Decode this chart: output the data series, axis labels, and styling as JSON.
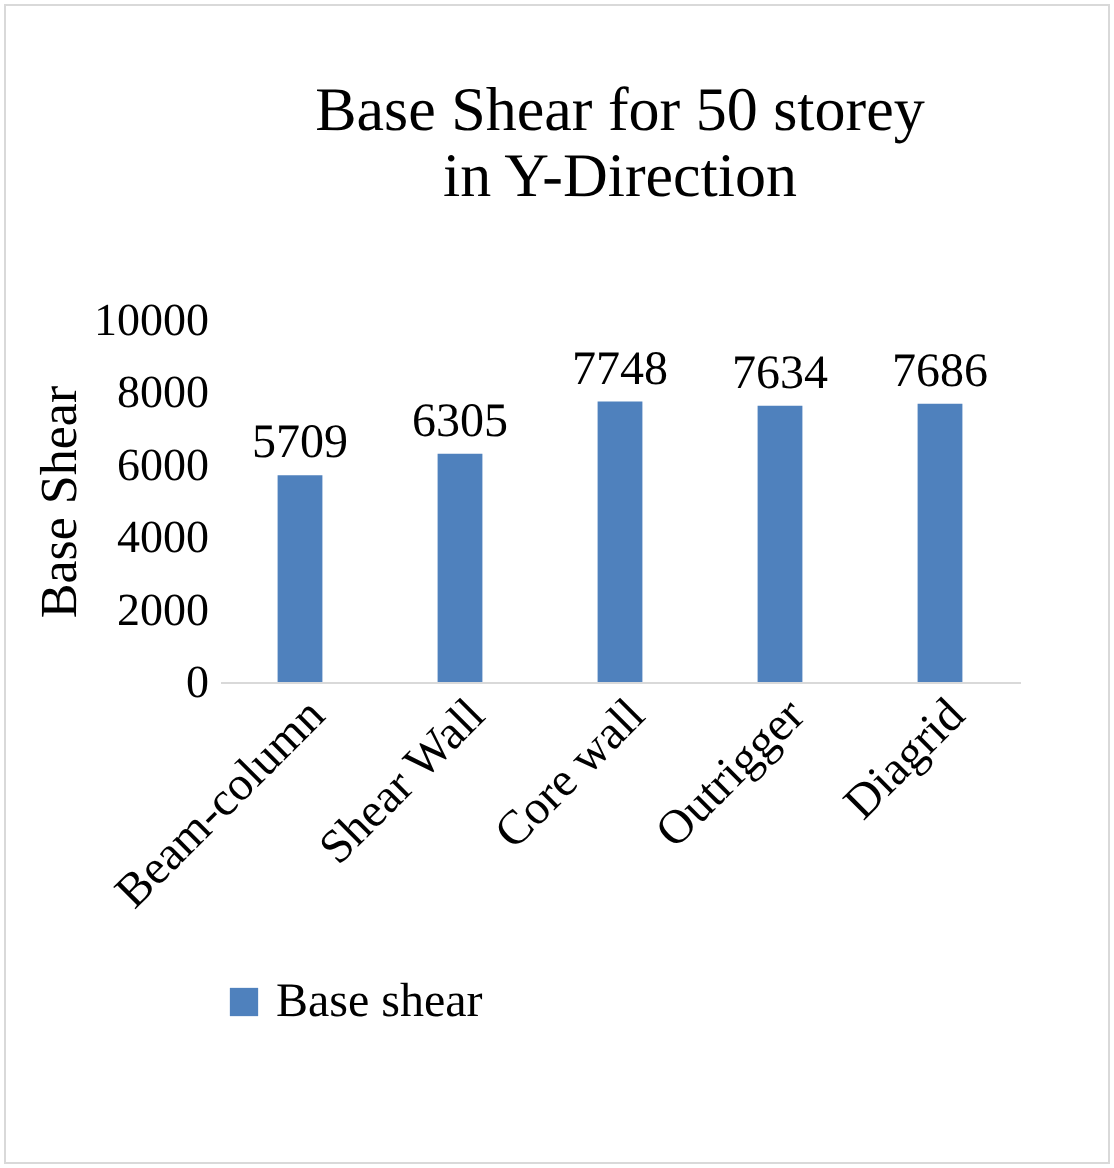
{
  "chart_data": {
    "type": "bar",
    "title": "Base Shear for 50 storey\nin Y-Direction",
    "ylabel": "Base Shear",
    "categories": [
      "Beam-column",
      "Shear Wall",
      "Core wall",
      "Outrigger",
      "Diagrid"
    ],
    "series": [
      {
        "name": "Base shear",
        "color": "#4f81bd",
        "values": [
          5709,
          6305,
          7748,
          7634,
          7686
        ]
      }
    ],
    "ylim": [
      0,
      10000
    ],
    "yticks": [
      0,
      2000,
      4000,
      6000,
      8000,
      10000
    ],
    "data_labels": true,
    "legend": "bottom",
    "grid": false
  }
}
